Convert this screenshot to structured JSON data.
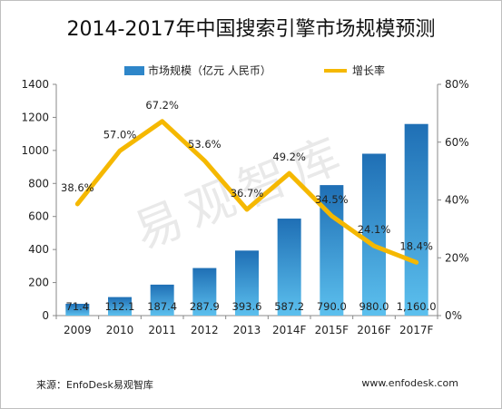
{
  "chart_data": {
    "type": "bar",
    "title": "2014-2017年中国搜索引擎市场规模预测",
    "categories": [
      "2009",
      "2010",
      "2011",
      "2012",
      "2013",
      "2014F",
      "2015F",
      "2016F",
      "2017F"
    ],
    "series": [
      {
        "name": "市场规模（亿元 人民币）",
        "type": "bar",
        "axis": "left",
        "color": "#2e86c9",
        "values": [
          71.4,
          112.1,
          187.4,
          287.9,
          393.6,
          587.2,
          790.0,
          980.0,
          1160.0
        ],
        "labels": [
          "71.4",
          "112.1",
          "187.4",
          "287.9",
          "393.6",
          "587.2",
          "790.0",
          "980.0",
          "1,160.0"
        ]
      },
      {
        "name": "增长率",
        "type": "line",
        "axis": "right",
        "color": "#f5b800",
        "values": [
          38.6,
          57.0,
          67.2,
          53.6,
          36.7,
          49.2,
          34.5,
          24.1,
          18.4
        ],
        "labels": [
          "38.6%",
          "57.0%",
          "67.2%",
          "53.6%",
          "36.7%",
          "49.2%",
          "34.5%",
          "24.1%",
          "18.4%"
        ]
      }
    ],
    "y_left": {
      "ylim": [
        0,
        1400
      ],
      "ticks": [
        "0",
        "200",
        "400",
        "600",
        "800",
        "1000",
        "1200",
        "1400"
      ]
    },
    "y_right": {
      "ylim": [
        0,
        80
      ],
      "ticks": [
        "0%",
        "20%",
        "40%",
        "60%",
        "80%"
      ]
    },
    "legend_placement": "top-center",
    "grid": false
  },
  "footer": {
    "source": "来源：EnfoDesk易观智库",
    "site": "www.enfodesk.com"
  },
  "watermark": "易观智库"
}
